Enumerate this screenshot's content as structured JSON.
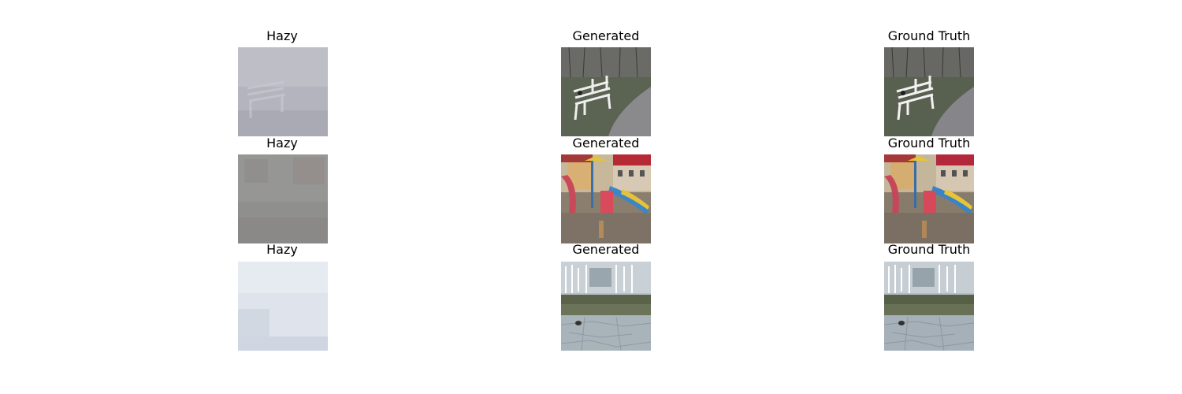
{
  "figure": {
    "rows": [
      {
        "hazy": "Hazy",
        "generated": "Generated",
        "ground_truth": "Ground Truth"
      },
      {
        "hazy": "Hazy",
        "generated": "Generated",
        "ground_truth": "Ground Truth"
      },
      {
        "hazy": "Hazy",
        "generated": "Generated",
        "ground_truth": "Ground Truth"
      }
    ]
  }
}
